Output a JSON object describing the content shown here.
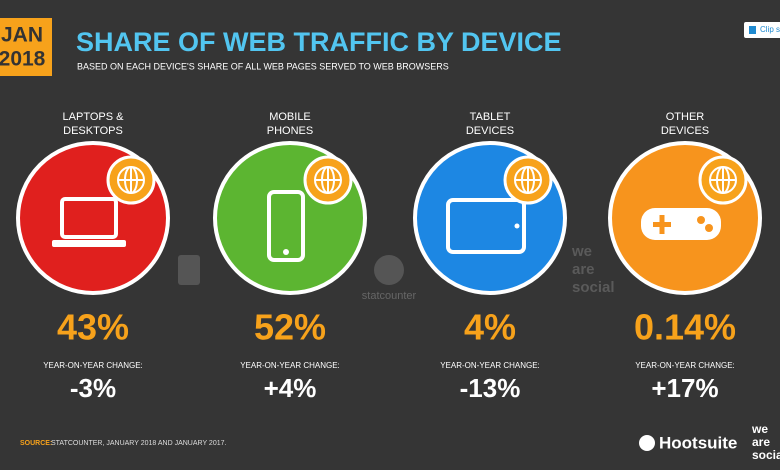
{
  "header": {
    "date_month": "JAN",
    "date_year": "2018",
    "title": "SHARE OF WEB TRAFFIC BY DEVICE",
    "subtitle": "BASED ON EACH DEVICE'S SHARE OF ALL WEB PAGES SERVED TO WEB BROWSERS"
  },
  "clip_button": "Clip slide",
  "devices": [
    {
      "label_lines": [
        "LAPTOPS &",
        "DESKTOPS"
      ],
      "share": "43%",
      "change_label": "YEAR-ON-YEAR CHANGE:",
      "change": "-3%"
    },
    {
      "label_lines": [
        "MOBILE",
        "PHONES"
      ],
      "share": "52%",
      "change_label": "YEAR-ON-YEAR CHANGE:",
      "change": "+4%"
    },
    {
      "label_lines": [
        "TABLET",
        "DEVICES"
      ],
      "share": "4%",
      "change_label": "YEAR-ON-YEAR CHANGE:",
      "change": "-13%"
    },
    {
      "label_lines": [
        "OTHER",
        "DEVICES"
      ],
      "share": "0.14%",
      "change_label": "YEAR-ON-YEAR CHANGE:",
      "change": "+17%"
    }
  ],
  "watermarks": {
    "statcounter": "statcounter",
    "we_are_social": [
      "we",
      "are",
      "social"
    ]
  },
  "footer": {
    "source_label": "SOURCE:",
    "source": "STATCOUNTER, JANUARY 2018 AND JANUARY 2017.",
    "brand": "Hootsuite",
    "partner_lines": [
      "we",
      "are",
      "social"
    ]
  }
}
